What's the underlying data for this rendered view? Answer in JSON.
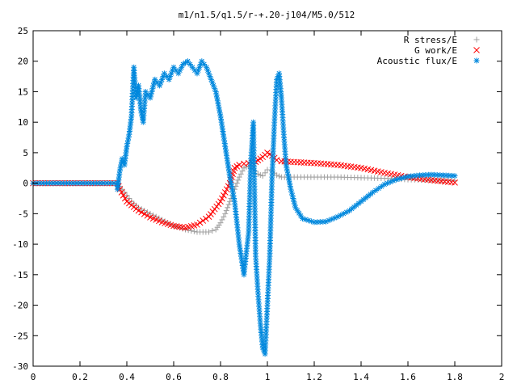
{
  "chart_data": {
    "type": "scatter",
    "title": "m1/n1.5/q1.5/r-+.20-j104/M5.0/512",
    "xlabel": "",
    "ylabel": "",
    "xlim": [
      0,
      2
    ],
    "ylim": [
      -30,
      25
    ],
    "x_ticks": [
      0,
      0.2,
      0.4,
      0.6,
      0.8,
      1,
      1.2,
      1.4,
      1.6,
      1.8,
      2
    ],
    "x_tick_labels": [
      "0",
      "0.2",
      "0.4",
      "0.6",
      "0.8",
      "1",
      "1.2",
      "1.4",
      "1.6",
      "1.8",
      "2"
    ],
    "y_ticks": [
      25,
      20,
      15,
      10,
      5,
      0,
      -5,
      -10,
      -15,
      -20,
      -25,
      -30
    ],
    "y_tick_labels": [
      "25",
      "20",
      "15",
      "10",
      "5",
      "0",
      "-5",
      "-10",
      "-15",
      "-20",
      "-25",
      "-30"
    ],
    "grid": false,
    "legend_position": "top-right",
    "series": [
      {
        "name": "R stress/E",
        "marker": "plus",
        "color": "#a0a0a0",
        "points": [
          [
            0,
            0
          ],
          [
            0.1,
            0
          ],
          [
            0.2,
            0
          ],
          [
            0.3,
            0
          ],
          [
            0.36,
            0
          ],
          [
            0.38,
            -1
          ],
          [
            0.4,
            -2
          ],
          [
            0.42,
            -3
          ],
          [
            0.45,
            -4
          ],
          [
            0.5,
            -5
          ],
          [
            0.55,
            -6
          ],
          [
            0.6,
            -7
          ],
          [
            0.65,
            -7.6
          ],
          [
            0.7,
            -8
          ],
          [
            0.75,
            -8
          ],
          [
            0.78,
            -7.6
          ],
          [
            0.8,
            -6.5
          ],
          [
            0.82,
            -5
          ],
          [
            0.84,
            -3
          ],
          [
            0.86,
            -1
          ],
          [
            0.88,
            1
          ],
          [
            0.9,
            2.5
          ],
          [
            0.92,
            2.8
          ],
          [
            0.94,
            2.4
          ],
          [
            0.96,
            1.5
          ],
          [
            0.98,
            1.2
          ],
          [
            1.0,
            2.2
          ],
          [
            1.02,
            2.0
          ],
          [
            1.04,
            1.3
          ],
          [
            1.06,
            1
          ],
          [
            1.1,
            1
          ],
          [
            1.2,
            1
          ],
          [
            1.3,
            1
          ],
          [
            1.4,
            0.9
          ],
          [
            1.5,
            0.8
          ],
          [
            1.6,
            0.6
          ],
          [
            1.7,
            0.5
          ],
          [
            1.8,
            0.4
          ]
        ]
      },
      {
        "name": "G work/E",
        "marker": "cross",
        "color": "#ff0000",
        "points": [
          [
            0,
            0
          ],
          [
            0.1,
            0
          ],
          [
            0.2,
            0
          ],
          [
            0.3,
            0
          ],
          [
            0.36,
            0
          ],
          [
            0.37,
            -1
          ],
          [
            0.4,
            -3
          ],
          [
            0.45,
            -4.5
          ],
          [
            0.5,
            -5.6
          ],
          [
            0.55,
            -6.4
          ],
          [
            0.6,
            -7
          ],
          [
            0.65,
            -7.3
          ],
          [
            0.7,
            -6.8
          ],
          [
            0.75,
            -5.5
          ],
          [
            0.8,
            -3
          ],
          [
            0.84,
            0
          ],
          [
            0.86,
            2.5
          ],
          [
            0.88,
            3
          ],
          [
            0.9,
            3.2
          ],
          [
            0.92,
            3.3
          ],
          [
            0.95,
            3.5
          ],
          [
            0.98,
            4.3
          ],
          [
            1.0,
            5
          ],
          [
            1.02,
            4.5
          ],
          [
            1.04,
            3.8
          ],
          [
            1.06,
            3.6
          ],
          [
            1.1,
            3.5
          ],
          [
            1.2,
            3.3
          ],
          [
            1.3,
            3
          ],
          [
            1.4,
            2.5
          ],
          [
            1.5,
            1.7
          ],
          [
            1.6,
            1
          ],
          [
            1.7,
            0.5
          ],
          [
            1.8,
            0.1
          ]
        ]
      },
      {
        "name": "Acoustic flux/E",
        "marker": "star",
        "color": "#0088dd",
        "points": [
          [
            0,
            0
          ],
          [
            0.1,
            0
          ],
          [
            0.2,
            0
          ],
          [
            0.3,
            0
          ],
          [
            0.36,
            0
          ],
          [
            0.36,
            -1
          ],
          [
            0.37,
            2
          ],
          [
            0.38,
            4
          ],
          [
            0.39,
            3
          ],
          [
            0.4,
            6
          ],
          [
            0.41,
            8
          ],
          [
            0.42,
            11
          ],
          [
            0.43,
            19
          ],
          [
            0.44,
            14
          ],
          [
            0.45,
            16
          ],
          [
            0.46,
            12
          ],
          [
            0.47,
            10
          ],
          [
            0.48,
            15
          ],
          [
            0.5,
            14
          ],
          [
            0.52,
            17
          ],
          [
            0.54,
            16
          ],
          [
            0.56,
            18
          ],
          [
            0.58,
            17
          ],
          [
            0.6,
            19
          ],
          [
            0.62,
            18
          ],
          [
            0.64,
            19.5
          ],
          [
            0.66,
            20
          ],
          [
            0.68,
            19
          ],
          [
            0.7,
            18
          ],
          [
            0.72,
            20
          ],
          [
            0.74,
            19
          ],
          [
            0.76,
            17
          ],
          [
            0.78,
            15
          ],
          [
            0.8,
            11
          ],
          [
            0.82,
            6
          ],
          [
            0.84,
            1
          ],
          [
            0.86,
            -3
          ],
          [
            0.88,
            -10
          ],
          [
            0.9,
            -15
          ],
          [
            0.92,
            -8
          ],
          [
            0.93,
            4
          ],
          [
            0.94,
            10
          ],
          [
            0.95,
            -12
          ],
          [
            0.96,
            -18
          ],
          [
            0.97,
            -23
          ],
          [
            0.98,
            -27
          ],
          [
            0.99,
            -28
          ],
          [
            1.0,
            -20
          ],
          [
            1.01,
            -12
          ],
          [
            1.02,
            1
          ],
          [
            1.03,
            10
          ],
          [
            1.04,
            17
          ],
          [
            1.05,
            18
          ],
          [
            1.06,
            14
          ],
          [
            1.07,
            8
          ],
          [
            1.08,
            3
          ],
          [
            1.1,
            -1
          ],
          [
            1.12,
            -4
          ],
          [
            1.15,
            -5.8
          ],
          [
            1.2,
            -6.4
          ],
          [
            1.25,
            -6.3
          ],
          [
            1.3,
            -5.5
          ],
          [
            1.35,
            -4.5
          ],
          [
            1.4,
            -3
          ],
          [
            1.45,
            -1.5
          ],
          [
            1.5,
            -0.2
          ],
          [
            1.55,
            0.6
          ],
          [
            1.6,
            1.1
          ],
          [
            1.65,
            1.3
          ],
          [
            1.7,
            1.4
          ],
          [
            1.75,
            1.3
          ],
          [
            1.8,
            1.2
          ]
        ]
      }
    ]
  }
}
